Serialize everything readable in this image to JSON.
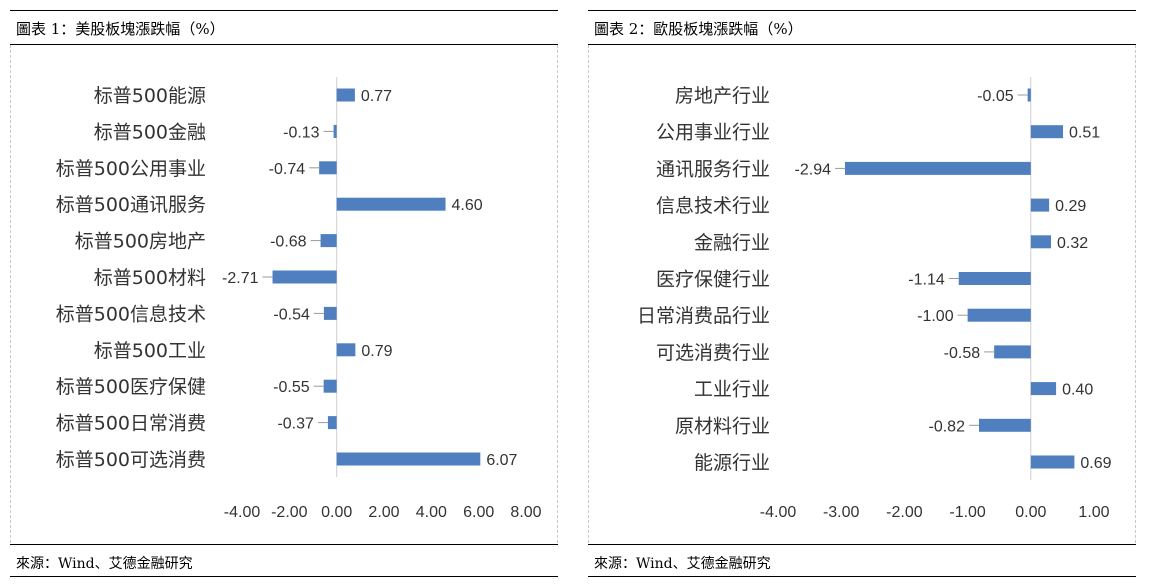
{
  "panels": [
    {
      "title": "圖表 1：美股板塊漲跌幅（%）",
      "source": "來源：Wind、艾德金融研究",
      "chart_data": {
        "type": "bar",
        "orientation": "horizontal",
        "categories": [
          "标普500能源",
          "标普500金融",
          "标普500公用事业",
          "标普500通讯服务",
          "标普500房地产",
          "标普500材料",
          "标普500信息技术",
          "标普500工业",
          "标普500医疗保健",
          "标普500日常消费",
          "标普500可选消费"
        ],
        "values": [
          0.77,
          -0.13,
          -0.74,
          4.6,
          -0.68,
          -2.71,
          -0.54,
          0.79,
          -0.55,
          -0.37,
          6.07
        ],
        "value_labels": [
          "0.77",
          "-0.13",
          "-0.74",
          "4.60",
          "-0.68",
          "-2.71",
          "-0.54",
          "0.79",
          "-0.55",
          "-0.37",
          "6.07"
        ],
        "xlim": [
          -4,
          8
        ],
        "ticks": [
          "-4.00",
          "-2.00",
          "0.00",
          "2.00",
          "4.00",
          "6.00",
          "8.00"
        ],
        "tick_values": [
          -4,
          -2,
          0,
          2,
          4,
          6,
          8
        ],
        "bar_color": "#4f7fbf",
        "grid": false,
        "legend": "none"
      }
    },
    {
      "title": "圖表 2：歐股板塊漲跌幅（%）",
      "source": "來源：Wind、艾德金融研究",
      "chart_data": {
        "type": "bar",
        "orientation": "horizontal",
        "categories": [
          "房地产行业",
          "公用事业行业",
          "通讯服务行业",
          "信息技术行业",
          "金融行业",
          "医疗保健行业",
          "日常消费品行业",
          "可选消费行业",
          "工业行业",
          "原材料行业",
          "能源行业"
        ],
        "values": [
          -0.05,
          0.51,
          -2.94,
          0.29,
          0.32,
          -1.14,
          -1.0,
          -0.58,
          0.4,
          -0.82,
          0.69
        ],
        "value_labels": [
          "-0.05",
          "0.51",
          "-2.94",
          "0.29",
          "0.32",
          "-1.14",
          "-1.00",
          "-0.58",
          "0.40",
          "-0.82",
          "0.69"
        ],
        "xlim": [
          -4,
          1
        ],
        "ticks": [
          "-4.00",
          "-3.00",
          "-2.00",
          "-1.00",
          "0.00",
          "1.00"
        ],
        "tick_values": [
          -4,
          -3,
          -2,
          -1,
          0,
          1
        ],
        "bar_color": "#4f7fbf",
        "grid": false,
        "legend": "none"
      }
    }
  ]
}
